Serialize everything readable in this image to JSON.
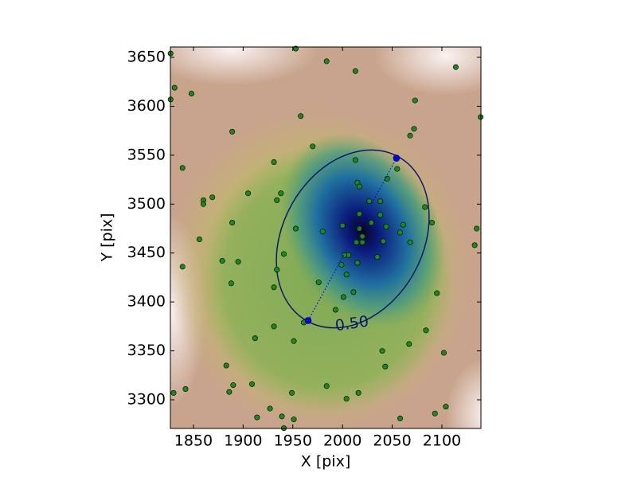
{
  "chart_data": {
    "type": "scatter",
    "xlabel": "X [pix]",
    "ylabel": "Y [pix]",
    "xlim": [
      1826.8,
      2139.3
    ],
    "ylim": [
      3270.7,
      3660.6
    ],
    "xticks": [
      1850,
      1900,
      1950,
      2000,
      2050,
      2100
    ],
    "yticks": [
      3300,
      3350,
      3400,
      3450,
      3500,
      3550,
      3600,
      3650
    ],
    "series": [
      {
        "color": "#1a8a1a",
        "x": [
          1827,
          1831,
          1827,
          1848,
          1839,
          1869,
          1860,
          1860,
          1856,
          1889,
          1889,
          1905,
          1879,
          1895,
          1839,
          1888,
          1931,
          1953,
          1984,
          2013,
          1958,
          1970,
          2073,
          2114,
          2139,
          2072,
          2068,
          2013,
          2055,
          2045,
          2015,
          2017,
          1938,
          1934,
          1953,
          1980,
          2017,
          2027,
          2038,
          2038,
          2029,
          2017,
          2020,
          2014,
          2020,
          2041,
          2044,
          2061,
          2058,
          2068,
          2083,
          2090,
          2135,
          2133,
          2000,
          2006,
          2002,
          2015,
          2035,
          1999,
          2004,
          1941,
          1934,
          1976,
          1931,
          2011,
          2001,
          1993,
          1961,
          2095,
          1931,
          2084,
          1912,
          1951,
          2040,
          2102,
          2067,
          2043,
          1883,
          1909,
          1890,
          1886,
          1984,
          1842,
          1830,
          1949,
          2016,
          2004,
          1927,
          2104,
          2093,
          1914,
          1939,
          1951,
          2058,
          1941
        ],
        "y": [
          3654,
          3619,
          3607,
          3613,
          3537,
          3507,
          3504,
          3500,
          3464,
          3574,
          3481,
          3511,
          3442,
          3441,
          3436,
          3419,
          3543,
          3659,
          3646,
          3636,
          3590,
          3559,
          3606,
          3640,
          3589,
          3577,
          3570,
          3545,
          3536,
          3526,
          3522,
          3518,
          3511,
          3504,
          3475,
          3472,
          3490,
          3503,
          3503,
          3489,
          3481,
          3475,
          3467,
          3461,
          3461,
          3462,
          3477,
          3479,
          3471,
          3461,
          3497,
          3481,
          3475,
          3458,
          3478,
          3448,
          3448,
          3440,
          3446,
          3438,
          3428,
          3449,
          3433,
          3420,
          3415,
          3410,
          3405,
          3392,
          3379,
          3409,
          3375,
          3371,
          3363,
          3360,
          3350,
          3348,
          3357,
          3334,
          3335,
          3316,
          3315,
          3308,
          3314,
          3311,
          3307,
          3307,
          3307,
          3301,
          3291,
          3293,
          3286,
          3282,
          3283,
          3280,
          3281,
          3271
        ]
      }
    ],
    "segment": {
      "color": "#0000ff",
      "x": [
        1965.4,
        2054.3
      ],
      "y": [
        3381,
        3547
      ]
    },
    "contour_label": "0.50"
  }
}
